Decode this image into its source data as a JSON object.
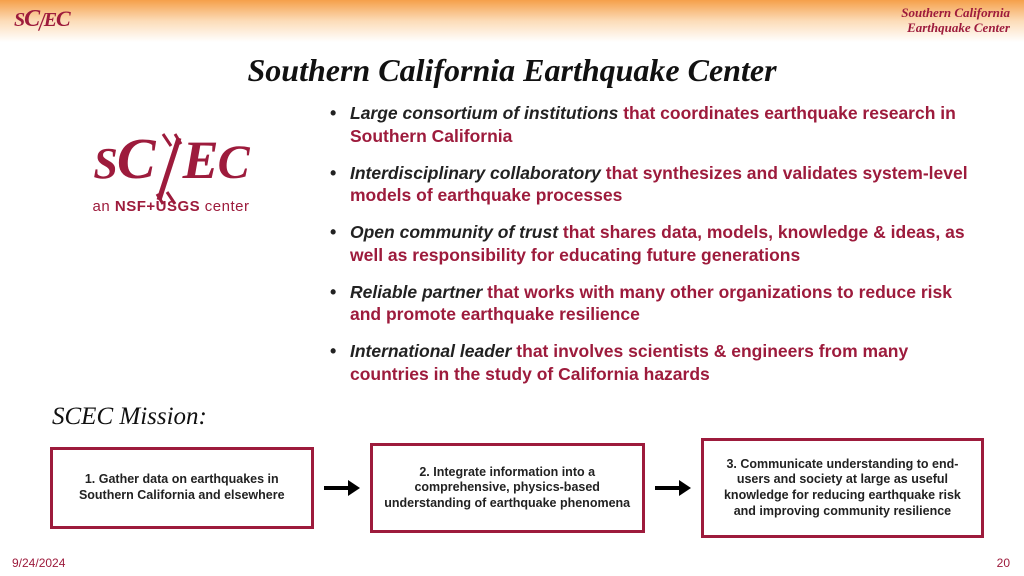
{
  "colors": {
    "brand": "#9d1b3c",
    "text": "#222222",
    "gradient_top": "#f5a04a",
    "gradient_mid": "#fcdcb8",
    "background": "#ffffff",
    "box_border": "#9d1b3c"
  },
  "header": {
    "logo_small": "SC/EC",
    "org_line1": "Southern California",
    "org_line2": "Earthquake Center"
  },
  "title": "Southern California Earthquake Center",
  "logo": {
    "text": "SC/EC",
    "subtitle_prefix": "an ",
    "subtitle_bold": "NSF+USGS",
    "subtitle_suffix": " center"
  },
  "bullets": [
    {
      "lead": "Large consortium of institutions",
      "rest": " that coordinates earthquake research in Southern California"
    },
    {
      "lead": "Interdisciplinary collaboratory",
      "rest": " that synthesizes and validates system-level models of earthquake processes"
    },
    {
      "lead": "Open community of trust",
      "rest": " that shares data, models, knowledge & ideas, as well as responsibility for educating future generations"
    },
    {
      "lead": "Reliable partner",
      "rest": " that works with many other organizations to reduce risk and promote earthquake resilience"
    },
    {
      "lead": "International leader",
      "rest": " that involves scientists & engineers from many countries in the study of California hazards"
    }
  ],
  "mission": {
    "label": "SCEC Mission:",
    "boxes": [
      "1. Gather data on earthquakes in Southern California and elsewhere",
      "2. Integrate information into a comprehensive, physics-based understanding of earthquake phenomena",
      "3. Communicate understanding to end-users and society at large as useful knowledge for reducing earthquake risk and improving community resilience"
    ]
  },
  "footer": {
    "date": "9/24/2024",
    "page": "20"
  }
}
